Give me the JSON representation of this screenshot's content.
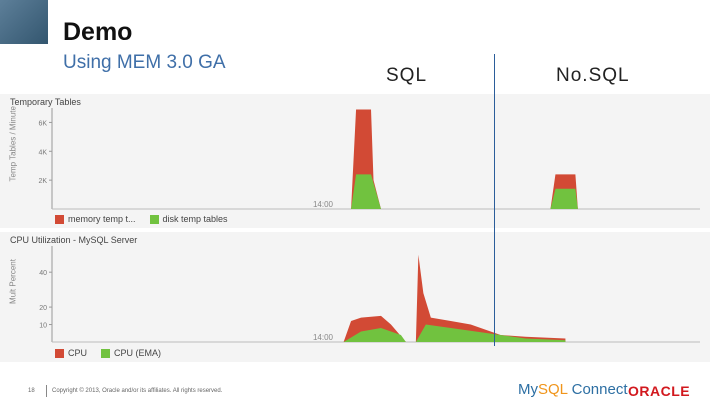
{
  "slide": {
    "title": "Demo",
    "subtitle": "Using MEM 3.0 GA",
    "col_sql": "SQL",
    "col_nosql": "No.SQL",
    "page_number": "18",
    "copyright": "Copyright © 2013, Oracle and/or its affiliates. All rights reserved."
  },
  "logos": {
    "mysql_part1": "My",
    "mysql_part2": "SQL",
    "mysql_part3": " Connect",
    "oracle": "ORACLE"
  },
  "colors": {
    "red": "#d24a35",
    "green": "#71c23f",
    "accent_blue": "#2b5d9a",
    "brand_orange": "#f0951b"
  },
  "chart_data": [
    {
      "type": "area",
      "title": "Temporary Tables",
      "ylabel": "Temp Tables / Minute",
      "ylim": [
        0,
        7000
      ],
      "yticks": [
        "2K",
        "4K",
        "6K"
      ],
      "x_tick_label": "14:00",
      "legend": "bottom-left",
      "grid": false,
      "series": [
        {
          "name": "memory temp t...",
          "color": "#d24a35",
          "points": [
            [
              0,
              0
            ],
            [
              0.6,
              0
            ],
            [
              0.61,
              6900
            ],
            [
              0.64,
              6900
            ],
            [
              0.645,
              2000
            ],
            [
              0.66,
              0
            ],
            [
              1.0,
              0
            ],
            [
              1.01,
              2400
            ],
            [
              1.05,
              2400
            ],
            [
              1.055,
              0
            ],
            [
              1.3,
              0
            ]
          ]
        },
        {
          "name": "disk temp tables",
          "color": "#71c23f",
          "points": [
            [
              0,
              0
            ],
            [
              0.6,
              0
            ],
            [
              0.61,
              2400
            ],
            [
              0.64,
              2400
            ],
            [
              0.66,
              0
            ],
            [
              1.0,
              0
            ],
            [
              1.01,
              1400
            ],
            [
              1.05,
              1400
            ],
            [
              1.055,
              0
            ],
            [
              1.3,
              0
            ]
          ]
        }
      ]
    },
    {
      "type": "area",
      "title": "CPU Utilization - MySQL Server",
      "ylabel": "Mult Percent",
      "ylim": [
        0,
        55
      ],
      "yticks": [
        "10",
        "20",
        "40"
      ],
      "x_tick_label": "14:00",
      "legend": "bottom-left",
      "grid": false,
      "series": [
        {
          "name": "CPU",
          "color": "#d24a35",
          "points": [
            [
              0,
              0
            ],
            [
              0.585,
              0
            ],
            [
              0.6,
              12
            ],
            [
              0.62,
              14
            ],
            [
              0.66,
              15
            ],
            [
              0.68,
              10
            ],
            [
              0.71,
              0
            ],
            [
              0.73,
              0
            ],
            [
              0.735,
              50
            ],
            [
              0.745,
              28
            ],
            [
              0.76,
              14
            ],
            [
              0.8,
              12
            ],
            [
              0.84,
              10
            ],
            [
              0.88,
              6
            ],
            [
              0.9,
              4
            ],
            [
              0.95,
              3
            ],
            [
              1.03,
              2
            ]
          ]
        },
        {
          "name": "CPU (EMA)",
          "color": "#71c23f",
          "points": [
            [
              0,
              0
            ],
            [
              0.585,
              0
            ],
            [
              0.62,
              6
            ],
            [
              0.66,
              8
            ],
            [
              0.7,
              4
            ],
            [
              0.71,
              0
            ],
            [
              0.73,
              0
            ],
            [
              0.75,
              10
            ],
            [
              0.8,
              8
            ],
            [
              0.85,
              6
            ],
            [
              0.9,
              4
            ],
            [
              0.95,
              2
            ],
            [
              1.03,
              1
            ]
          ]
        }
      ]
    }
  ]
}
